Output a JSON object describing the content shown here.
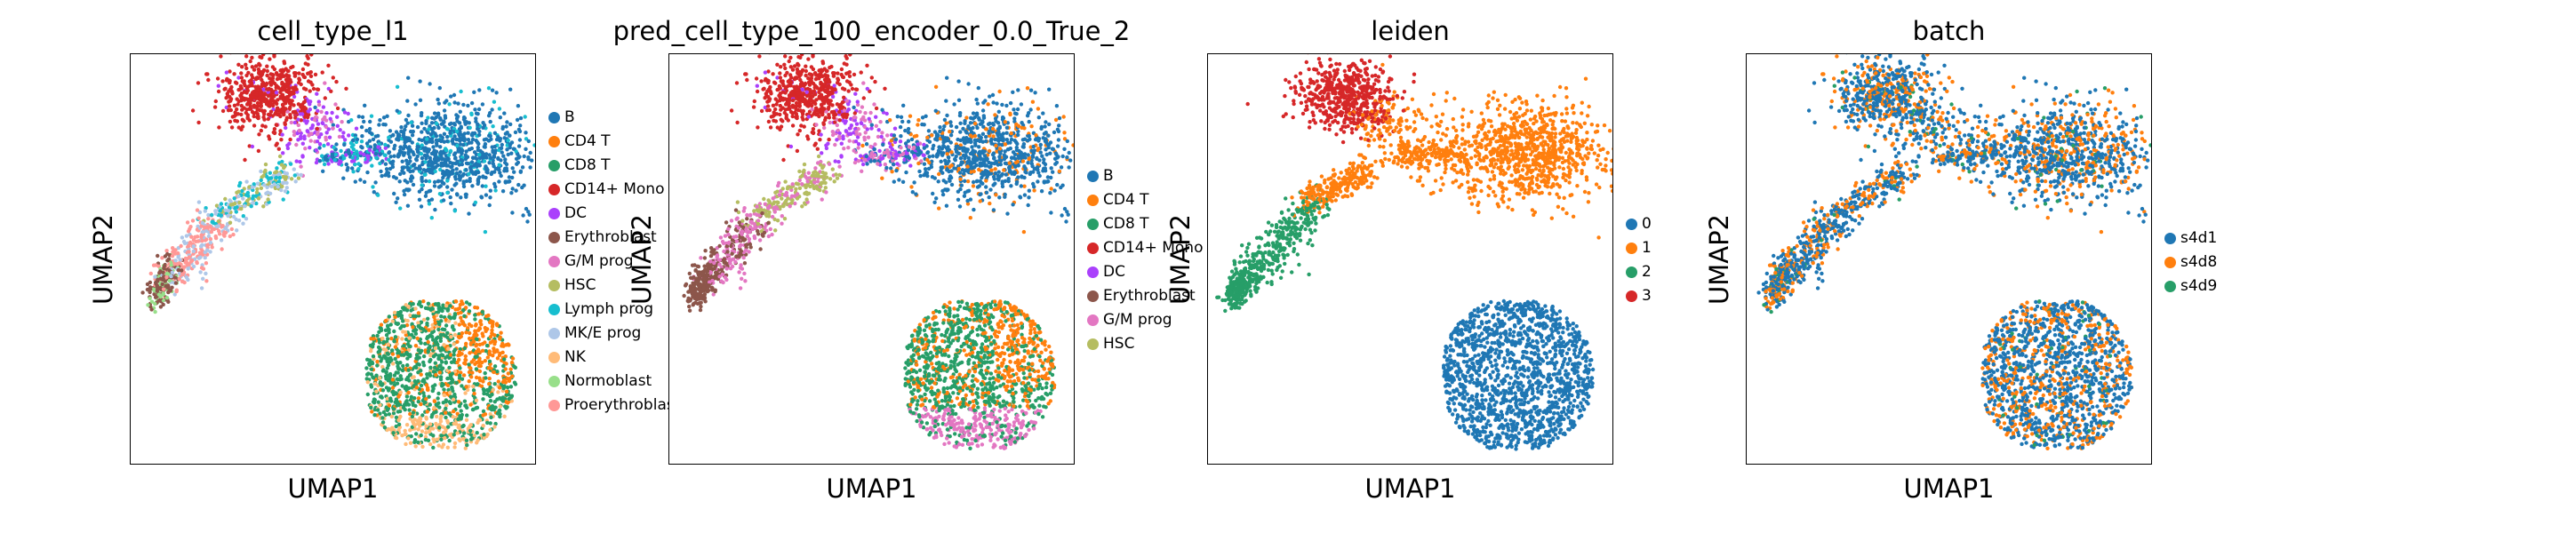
{
  "colors": {
    "B": "#1f77b4",
    "CD4 T": "#ff7f0e",
    "CD8 T": "#279e68",
    "CD14+ Mono": "#d62728",
    "DC": "#aa40fc",
    "Erythroblast": "#8c564b",
    "G/M prog": "#e377c2",
    "HSC": "#b5bd61",
    "Lymph prog": "#17becf",
    "MK/E prog": "#aec7e8",
    "NK": "#ffbb78",
    "Normoblast": "#98df8a",
    "Proerythroblast": "#ff9896",
    "0": "#1f77b4",
    "1": "#ff7f0e",
    "2": "#279e68",
    "3": "#d62728",
    "s4d1": "#1f77b4",
    "s4d8": "#ff7f0e",
    "s4d9": "#279e68"
  },
  "chart_data": [
    {
      "type": "scatter",
      "title": "cell_type_l1",
      "xlabel": "UMAP1",
      "ylabel": "UMAP2",
      "legend_position": "right-outside",
      "legend": [
        "B",
        "CD4 T",
        "CD8 T",
        "CD14+ Mono",
        "DC",
        "Erythroblast",
        "G/M prog",
        "HSC",
        "Lymph prog",
        "MK/E prog",
        "NK",
        "Normoblast",
        "Proerythroblas"
      ]
    },
    {
      "type": "scatter",
      "title": "pred_cell_type_100_encoder_0.0_True_2",
      "xlabel": "UMAP1",
      "ylabel": "UMAP2",
      "legend_position": "right-outside",
      "legend": [
        "B",
        "CD4 T",
        "CD8 T",
        "CD14+ Mono",
        "DC",
        "Erythroblast",
        "G/M prog",
        "HSC"
      ]
    },
    {
      "type": "scatter",
      "title": "leiden",
      "xlabel": "UMAP1",
      "ylabel": "UMAP2",
      "legend_position": "right-outside",
      "legend": [
        "0",
        "1",
        "2",
        "3"
      ]
    },
    {
      "type": "scatter",
      "title": "batch",
      "xlabel": "UMAP1",
      "ylabel": "UMAP2",
      "legend_position": "right-outside",
      "legend": [
        "s4d1",
        "s4d8",
        "s4d9"
      ]
    }
  ]
}
